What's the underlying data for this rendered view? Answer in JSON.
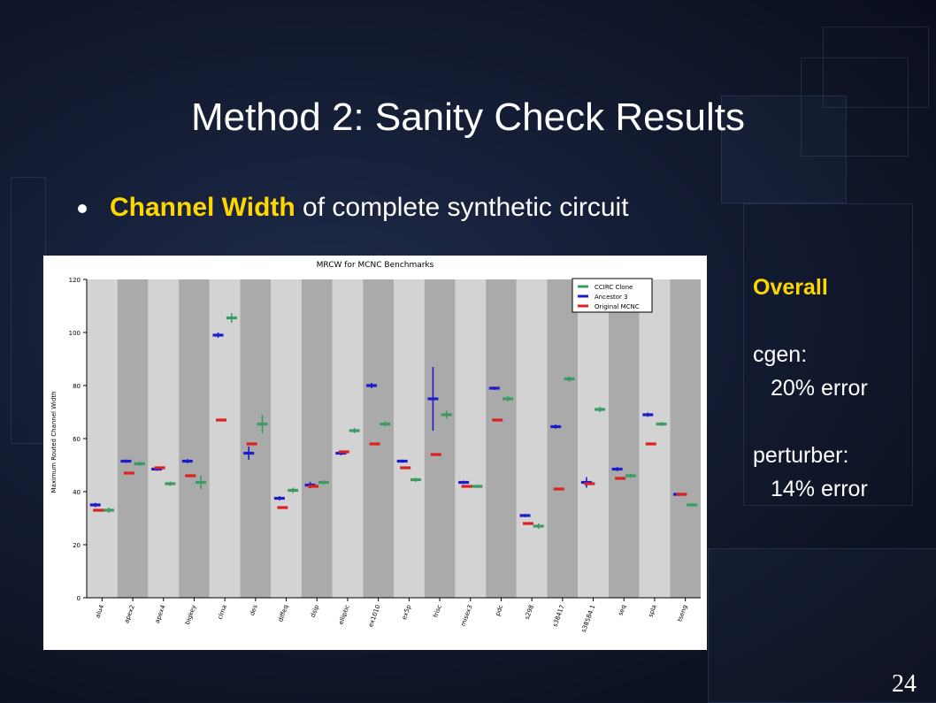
{
  "slide": {
    "title": "Method 2: Sanity Check Results",
    "bullet_highlight": "Channel Width",
    "bullet_rest": " of complete synthetic circuit",
    "page_number": "24"
  },
  "summary": {
    "heading": "Overall",
    "cgen_label": "cgen:",
    "cgen_value": "20% error",
    "perturber_label": "perturber:",
    "perturber_value": "14% error"
  },
  "colors": {
    "ccirc": "#3a9b64",
    "ancestor": "#1c1ccc",
    "original": "#dd2020",
    "highlight": "#ffd700"
  },
  "chart_data": {
    "type": "scatter",
    "title": "MRCW for MCNC Benchmarks",
    "ylabel": "Maximum Routed Channel Width",
    "xlabel": "",
    "ylim": [
      0,
      120
    ],
    "yticks": [
      0,
      20,
      40,
      60,
      80,
      100,
      120
    ],
    "legend_position": "top-right",
    "categories": [
      "alu4",
      "apex2",
      "apex4",
      "bigkey",
      "clma",
      "des",
      "diffeq",
      "dsip",
      "elliptic",
      "ex1010",
      "ex5p",
      "frisc",
      "misex3",
      "pdc",
      "s298",
      "s38417",
      "s38584.1",
      "seq",
      "spla",
      "tseng"
    ],
    "series": [
      {
        "name": "CCIRC Clone",
        "color": "#3a9b64",
        "values": [
          33,
          50.5,
          43,
          43.5,
          105.5,
          65.5,
          40.5,
          43.5,
          63,
          65.5,
          44.5,
          69,
          42,
          75,
          27,
          82.5,
          71,
          46,
          65.5,
          35
        ],
        "err": [
          1,
          0.8,
          0.8,
          2.5,
          1.8,
          3.5,
          1,
          0.8,
          1,
          1,
          0.8,
          1.5,
          0.6,
          1,
          1,
          1,
          1,
          0.8,
          0.8,
          0.6
        ]
      },
      {
        "name": "Ancestor 3",
        "color": "#1c1ccc",
        "values": [
          35,
          51.5,
          48.5,
          51.5,
          99,
          54.5,
          37.5,
          42.5,
          54.5,
          80,
          51.5,
          75,
          43.5,
          79,
          31,
          64.5,
          43.5,
          48.5,
          69,
          39
        ],
        "err": [
          0.8,
          0.6,
          0.6,
          0.8,
          1,
          2.5,
          0.8,
          1.2,
          0.8,
          1,
          0.6,
          12,
          0.6,
          0.6,
          0.6,
          0.8,
          2,
          0.8,
          0.8,
          0.6
        ]
      },
      {
        "name": "Original MCNC",
        "color": "#dd2020",
        "values": [
          33,
          47,
          49,
          46,
          67,
          58,
          34,
          42,
          55,
          58,
          49,
          54,
          42,
          67,
          28,
          41,
          43,
          45,
          58,
          39
        ],
        "err": [
          0,
          0,
          0,
          0,
          0,
          0,
          0,
          0,
          0,
          0,
          0,
          0,
          0,
          0,
          0,
          0,
          0,
          0,
          0,
          0
        ]
      }
    ]
  }
}
